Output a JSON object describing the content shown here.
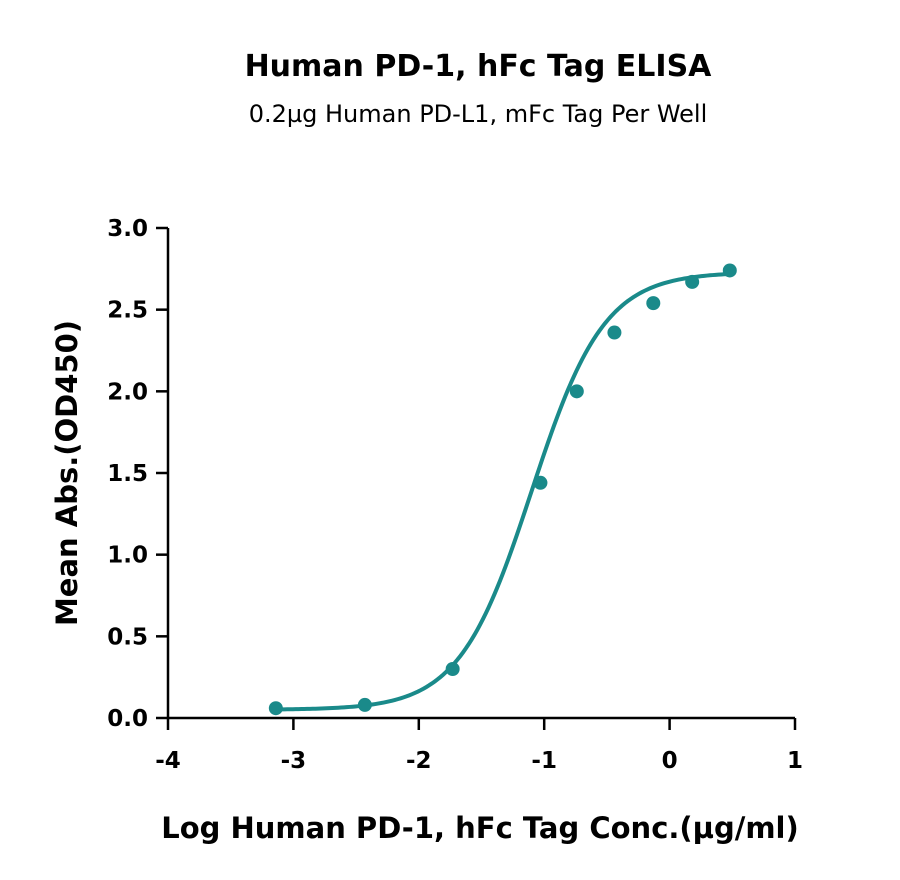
{
  "chart_data": {
    "type": "scatter",
    "title": "Human PD-1, hFc Tag ELISA",
    "subtitle": "0.2µg Human PD-L1, mFc Tag Per Well",
    "xlabel": "Log Human PD-1, hFc Tag Conc.(µg/ml)",
    "ylabel": "Mean Abs.(OD450)",
    "xlim": [
      -4,
      1
    ],
    "ylim": [
      0,
      3
    ],
    "xticks": [
      "-4",
      "-3",
      "-2",
      "-1",
      "0",
      "1"
    ],
    "yticks": [
      "0.0",
      "0.5",
      "1.0",
      "1.5",
      "2.0",
      "2.5",
      "3.0"
    ],
    "grid": false,
    "color": "#1a8a8a",
    "series": [
      {
        "x": [
          -3.14,
          -2.43,
          -1.73,
          -1.03,
          -0.74,
          -0.44,
          -0.13,
          0.18,
          0.48
        ],
        "y": [
          0.06,
          0.08,
          0.3,
          1.44,
          2.0,
          2.36,
          2.54,
          2.67,
          2.74
        ]
      }
    ],
    "fit_curve": {
      "model": "4PL",
      "bottom": 0.05,
      "top": 2.73,
      "log_ec50": -1.1,
      "hill_slope": 1.5
    }
  }
}
